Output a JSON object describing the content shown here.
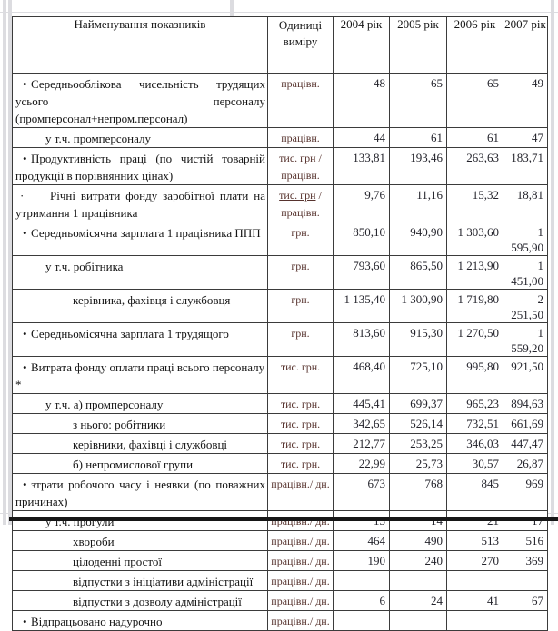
{
  "table": {
    "header": {
      "indicator": "Найменування показників",
      "unit": "Одиниці виміру",
      "years": [
        "2004 рік",
        "2005 рік",
        "2006 рік",
        "2007 рік"
      ]
    },
    "rows": [
      {
        "bullet": "•",
        "indent": 0,
        "justify": true,
        "name": "Середньооблікова чисельність трудящих усього персоналу (промперсонал+непром.персонал)",
        "unit": {
          "line1": "працівн."
        },
        "values": [
          "48",
          "65",
          "65",
          "49"
        ]
      },
      {
        "bullet": "",
        "indent": 1,
        "name": "у т.ч. промперсоналу",
        "unit": {
          "line1": "працівн."
        },
        "values": [
          "44",
          "61",
          "61",
          "47"
        ]
      },
      {
        "bullet": "•",
        "indent": 0,
        "justify": true,
        "name": "Продуктивність праці (по чистій товарній продукції в порівнянних цінах)",
        "unit": {
          "line1": "тис. грн",
          "suffix": " /",
          "line2": "працівн.",
          "underlined": true
        },
        "values": [
          "133,81",
          "193,46",
          "263,63",
          "183,71"
        ]
      },
      {
        "bullet": "·",
        "indent": 0,
        "justify": true,
        "name": "Річні витрати фонду заробітної плати на утримання 1 працівника",
        "unit": {
          "line1": "тис. грн",
          "suffix": " /",
          "line2": "працівн.",
          "underlined": true
        },
        "values": [
          "9,76",
          "11,16",
          "15,32",
          "18,81"
        ]
      },
      {
        "bullet": "•",
        "indent": 0,
        "name": "Середньомісячна зарплата 1 працівника ППП",
        "unit": {
          "line1": "грн."
        },
        "values": [
          "850,10",
          "940,90",
          "1 303,60",
          "1 595,90"
        ]
      },
      {
        "bullet": "",
        "indent": 1,
        "name": "у т.ч. робітника",
        "unit": {
          "line1": "грн."
        },
        "values": [
          "793,60",
          "865,50",
          "1 213,90",
          "1 451,00"
        ]
      },
      {
        "bullet": "",
        "indent": 2,
        "name": "керівника, фахівця і службовця",
        "unit": {
          "line1": "грн."
        },
        "values": [
          "1 135,40",
          "1 300,90",
          "1 719,80",
          "2 251,50"
        ]
      },
      {
        "bullet": "•",
        "indent": 0,
        "name": "Середньомісячна зарплата 1 трудящого",
        "unit": {
          "line1": "грн."
        },
        "values": [
          "813,60",
          "915,30",
          "1 270,50",
          "1 559,20"
        ]
      },
      {
        "bullet": "•",
        "indent": 0,
        "name": "Витрата фонду оплати праці всього персоналу *",
        "unit": {
          "line1": "тис. грн."
        },
        "values": [
          "468,40",
          "725,10",
          "995,80",
          "921,50"
        ]
      },
      {
        "bullet": "",
        "indent": 1,
        "name": "у т.ч.  а) промперсоналу",
        "unit": {
          "line1": "тис. грн."
        },
        "values": [
          "445,41",
          "699,37",
          "965,23",
          "894,63"
        ]
      },
      {
        "bullet": "",
        "indent": 2,
        "name": "з нього: робітники",
        "unit": {
          "line1": "тис. грн."
        },
        "values": [
          "342,65",
          "526,14",
          "732,51",
          "661,69"
        ]
      },
      {
        "bullet": "",
        "indent": 2,
        "name": "керівники, фахівці і службовці",
        "unit": {
          "line1": "тис. грн."
        },
        "values": [
          "212,77",
          "253,25",
          "346,03",
          "447,47"
        ]
      },
      {
        "bullet": "",
        "indent": 2,
        "name": "б) непромислової групи",
        "unit": {
          "line1": "тис. грн."
        },
        "values": [
          "22,99",
          "25,73",
          "30,57",
          "26,87"
        ]
      },
      {
        "bullet": "•",
        "indent": 0,
        "justify": true,
        "name": "зтрати робочого часу і неявки (по поважних причинах)",
        "unit": {
          "line1": "працівн./ дн."
        },
        "values": [
          "673",
          "768",
          "845",
          "969"
        ]
      },
      {
        "bullet": "",
        "indent": 1,
        "name": "у т.ч. прогули",
        "unit": {
          "line1": "працівн./ дн."
        },
        "values": [
          "13",
          "14",
          "21",
          "17"
        ]
      },
      {
        "bullet": "",
        "indent": 2,
        "name": "хвороби",
        "unit": {
          "line1": "працівн./ дн."
        },
        "values": [
          "464",
          "490",
          "513",
          "516"
        ]
      },
      {
        "bullet": "",
        "indent": 2,
        "name": "цілоденні простої",
        "unit": {
          "line1": "працівн./ дн."
        },
        "values": [
          "190",
          "240",
          "270",
          "369"
        ]
      },
      {
        "bullet": "",
        "indent": 2,
        "name": "відпустки з ініціативи адміністрації",
        "unit": {
          "line1": "працівн./ дн."
        },
        "values": [
          "",
          "",
          "",
          ""
        ]
      },
      {
        "bullet": "",
        "indent": 2,
        "name": "відпустки з дозволу адміністрації",
        "unit": {
          "line1": "працівн./ дн."
        },
        "values": [
          "6",
          "24",
          "41",
          "67"
        ]
      },
      {
        "bullet": "•",
        "indent": 0,
        "name": "Відпрацьовано надурочно",
        "unit": {
          "line1": "працівн./ дн."
        },
        "values": [
          "",
          "",
          "",
          ""
        ]
      }
    ]
  },
  "colors": {
    "cell_border": "#3b3b3b",
    "name_text": "#151515",
    "unit_text": "#57332e",
    "value_text": "#23232b",
    "faint_grid": "#dcdce0",
    "bottom_bar": "#161616"
  }
}
